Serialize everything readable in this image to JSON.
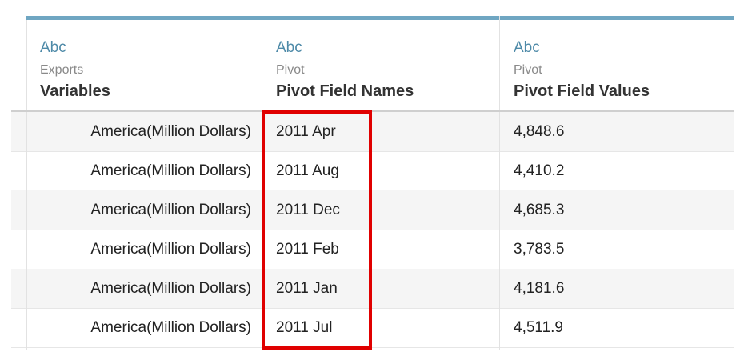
{
  "columns": [
    {
      "type_label": "Abc",
      "source": "Exports",
      "field_name": "Variables"
    },
    {
      "type_label": "Abc",
      "source": "Pivot",
      "field_name": "Pivot Field Names"
    },
    {
      "type_label": "Abc",
      "source": "Pivot",
      "field_name": "Pivot Field Values"
    }
  ],
  "rows": [
    {
      "variable": "America(Million Dollars)",
      "pivot_name": "2011 Apr",
      "pivot_value": "4,848.6"
    },
    {
      "variable": "America(Million Dollars)",
      "pivot_name": "2011 Aug",
      "pivot_value": "4,410.2"
    },
    {
      "variable": "America(Million Dollars)",
      "pivot_name": "2011 Dec",
      "pivot_value": "4,685.3"
    },
    {
      "variable": "America(Million Dollars)",
      "pivot_name": "2011 Feb",
      "pivot_value": "3,783.5"
    },
    {
      "variable": "America(Million Dollars)",
      "pivot_name": "2011 Jan",
      "pivot_value": "4,181.6"
    },
    {
      "variable": "America(Million Dollars)",
      "pivot_name": "2011 Jul",
      "pivot_value": "4,511.9"
    }
  ],
  "colors": {
    "header_accent": "#6fa6c2",
    "type_label": "#4e8aa8",
    "highlight": "#e00000",
    "striped_row": "#f5f5f5"
  }
}
